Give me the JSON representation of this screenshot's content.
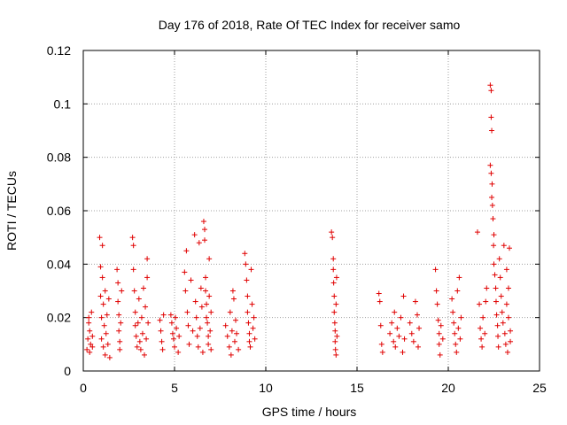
{
  "chart_data": {
    "type": "scatter",
    "title": "Day 176 of 2018, Rate Of TEC Index for receiver samo",
    "xlabel": "GPS time / hours",
    "ylabel": "ROTI / TECUs",
    "xlim": [
      0,
      25
    ],
    "ylim": [
      0,
      0.12
    ],
    "xticks": [
      0,
      5,
      10,
      15,
      20,
      25
    ],
    "yticks": [
      0,
      0.02,
      0.04,
      0.06,
      0.08,
      0.1,
      0.12
    ],
    "xtick_labels": [
      "0",
      "5",
      "10",
      "15",
      "20",
      "25"
    ],
    "ytick_labels": [
      "0",
      "0.02",
      "0.04",
      "0.06",
      "0.08",
      "0.1",
      "0.12"
    ],
    "grid": true,
    "marker": "+",
    "color": "#e00000",
    "series": [
      {
        "name": "ROTI",
        "points": [
          [
            0.2,
            0.008
          ],
          [
            0.25,
            0.012
          ],
          [
            0.3,
            0.018
          ],
          [
            0.3,
            0.02
          ],
          [
            0.35,
            0.015
          ],
          [
            0.35,
            0.007
          ],
          [
            0.4,
            0.01
          ],
          [
            0.45,
            0.022
          ],
          [
            0.5,
            0.013
          ],
          [
            0.5,
            0.009
          ],
          [
            0.9,
            0.05
          ],
          [
            0.95,
            0.039
          ],
          [
            0.95,
            0.028
          ],
          [
            1.0,
            0.02
          ],
          [
            1.0,
            0.012
          ],
          [
            1.05,
            0.047
          ],
          [
            1.05,
            0.035
          ],
          [
            1.1,
            0.025
          ],
          [
            1.1,
            0.009
          ],
          [
            1.15,
            0.017
          ],
          [
            1.2,
            0.006
          ],
          [
            1.2,
            0.03
          ],
          [
            1.25,
            0.014
          ],
          [
            1.3,
            0.021
          ],
          [
            1.35,
            0.01
          ],
          [
            1.4,
            0.027
          ],
          [
            1.45,
            0.005
          ],
          [
            1.85,
            0.038
          ],
          [
            1.9,
            0.033
          ],
          [
            1.9,
            0.026
          ],
          [
            1.95,
            0.021
          ],
          [
            1.95,
            0.015
          ],
          [
            2.0,
            0.011
          ],
          [
            2.0,
            0.008
          ],
          [
            2.05,
            0.018
          ],
          [
            2.1,
            0.03
          ],
          [
            2.7,
            0.05
          ],
          [
            2.75,
            0.047
          ],
          [
            2.75,
            0.038
          ],
          [
            2.8,
            0.03
          ],
          [
            2.85,
            0.022
          ],
          [
            2.85,
            0.017
          ],
          [
            2.9,
            0.013
          ],
          [
            2.95,
            0.009
          ],
          [
            3.0,
            0.018
          ],
          [
            3.05,
            0.027
          ],
          [
            3.1,
            0.011
          ],
          [
            3.15,
            0.008
          ],
          [
            3.2,
            0.02
          ],
          [
            3.25,
            0.014
          ],
          [
            3.3,
            0.031
          ],
          [
            3.35,
            0.006
          ],
          [
            3.4,
            0.024
          ],
          [
            3.45,
            0.012
          ],
          [
            3.5,
            0.042
          ],
          [
            3.5,
            0.035
          ],
          [
            3.55,
            0.018
          ],
          [
            4.2,
            0.019
          ],
          [
            4.25,
            0.015
          ],
          [
            4.3,
            0.011
          ],
          [
            4.35,
            0.008
          ],
          [
            4.4,
            0.021
          ],
          [
            4.8,
            0.021
          ],
          [
            4.85,
            0.018
          ],
          [
            4.9,
            0.014
          ],
          [
            4.95,
            0.012
          ],
          [
            5.0,
            0.009
          ],
          [
            5.05,
            0.02
          ],
          [
            5.1,
            0.016
          ],
          [
            5.2,
            0.007
          ],
          [
            5.25,
            0.013
          ],
          [
            5.55,
            0.037
          ],
          [
            5.6,
            0.03
          ],
          [
            5.65,
            0.045
          ],
          [
            5.7,
            0.022
          ],
          [
            5.75,
            0.017
          ],
          [
            5.8,
            0.01
          ],
          [
            5.9,
            0.034
          ],
          [
            6.0,
            0.015
          ],
          [
            6.1,
            0.051
          ],
          [
            6.15,
            0.026
          ],
          [
            6.2,
            0.02
          ],
          [
            6.25,
            0.013
          ],
          [
            6.3,
            0.009
          ],
          [
            6.35,
            0.048
          ],
          [
            6.4,
            0.016
          ],
          [
            6.45,
            0.031
          ],
          [
            6.5,
            0.024
          ],
          [
            6.55,
            0.007
          ],
          [
            6.6,
            0.056
          ],
          [
            6.65,
            0.053
          ],
          [
            6.65,
            0.049
          ],
          [
            6.7,
            0.035
          ],
          [
            6.7,
            0.03
          ],
          [
            6.75,
            0.025
          ],
          [
            6.75,
            0.02
          ],
          [
            6.8,
            0.018
          ],
          [
            6.85,
            0.013
          ],
          [
            6.85,
            0.01
          ],
          [
            6.9,
            0.042
          ],
          [
            6.9,
            0.028
          ],
          [
            6.95,
            0.015
          ],
          [
            7.0,
            0.022
          ],
          [
            7.0,
            0.008
          ],
          [
            7.8,
            0.017
          ],
          [
            7.9,
            0.013
          ],
          [
            8.0,
            0.009
          ],
          [
            8.05,
            0.022
          ],
          [
            8.1,
            0.006
          ],
          [
            8.15,
            0.015
          ],
          [
            8.2,
            0.03
          ],
          [
            8.25,
            0.027
          ],
          [
            8.3,
            0.011
          ],
          [
            8.35,
            0.019
          ],
          [
            8.4,
            0.014
          ],
          [
            8.5,
            0.008
          ],
          [
            8.85,
            0.044
          ],
          [
            8.9,
            0.04
          ],
          [
            8.95,
            0.034
          ],
          [
            9.0,
            0.028
          ],
          [
            9.0,
            0.022
          ],
          [
            9.05,
            0.018
          ],
          [
            9.1,
            0.014
          ],
          [
            9.1,
            0.011
          ],
          [
            9.15,
            0.009
          ],
          [
            9.2,
            0.038
          ],
          [
            9.25,
            0.025
          ],
          [
            9.3,
            0.016
          ],
          [
            9.35,
            0.02
          ],
          [
            9.4,
            0.012
          ],
          [
            13.6,
            0.052
          ],
          [
            13.65,
            0.05
          ],
          [
            13.7,
            0.042
          ],
          [
            13.7,
            0.038
          ],
          [
            13.72,
            0.033
          ],
          [
            13.75,
            0.028
          ],
          [
            13.75,
            0.022
          ],
          [
            13.78,
            0.018
          ],
          [
            13.8,
            0.015
          ],
          [
            13.8,
            0.011
          ],
          [
            13.82,
            0.008
          ],
          [
            13.85,
            0.006
          ],
          [
            13.85,
            0.025
          ],
          [
            13.88,
            0.035
          ],
          [
            13.9,
            0.013
          ],
          [
            16.2,
            0.029
          ],
          [
            16.25,
            0.026
          ],
          [
            16.3,
            0.017
          ],
          [
            16.35,
            0.01
          ],
          [
            16.4,
            0.007
          ],
          [
            16.8,
            0.014
          ],
          [
            16.9,
            0.018
          ],
          [
            17.0,
            0.011
          ],
          [
            17.05,
            0.022
          ],
          [
            17.1,
            0.009
          ],
          [
            17.2,
            0.016
          ],
          [
            17.3,
            0.013
          ],
          [
            17.4,
            0.02
          ],
          [
            17.5,
            0.007
          ],
          [
            17.55,
            0.028
          ],
          [
            17.6,
            0.012
          ],
          [
            17.9,
            0.018
          ],
          [
            18.0,
            0.014
          ],
          [
            18.1,
            0.011
          ],
          [
            18.2,
            0.026
          ],
          [
            18.3,
            0.021
          ],
          [
            18.35,
            0.009
          ],
          [
            18.4,
            0.016
          ],
          [
            19.3,
            0.038
          ],
          [
            19.35,
            0.03
          ],
          [
            19.4,
            0.025
          ],
          [
            19.45,
            0.019
          ],
          [
            19.5,
            0.014
          ],
          [
            19.5,
            0.01
          ],
          [
            19.55,
            0.006
          ],
          [
            19.6,
            0.017
          ],
          [
            19.7,
            0.012
          ],
          [
            20.2,
            0.027
          ],
          [
            20.25,
            0.022
          ],
          [
            20.3,
            0.018
          ],
          [
            20.35,
            0.014
          ],
          [
            20.4,
            0.01
          ],
          [
            20.45,
            0.007
          ],
          [
            20.5,
            0.03
          ],
          [
            20.55,
            0.016
          ],
          [
            20.6,
            0.035
          ],
          [
            20.65,
            0.012
          ],
          [
            20.7,
            0.02
          ],
          [
            21.6,
            0.052
          ],
          [
            21.7,
            0.025
          ],
          [
            21.75,
            0.016
          ],
          [
            21.8,
            0.012
          ],
          [
            21.85,
            0.009
          ],
          [
            21.9,
            0.02
          ],
          [
            22.0,
            0.014
          ],
          [
            22.05,
            0.026
          ],
          [
            22.1,
            0.031
          ],
          [
            22.3,
            0.107
          ],
          [
            22.35,
            0.105
          ],
          [
            22.35,
            0.095
          ],
          [
            22.38,
            0.09
          ],
          [
            22.3,
            0.077
          ],
          [
            22.35,
            0.074
          ],
          [
            22.4,
            0.07
          ],
          [
            22.38,
            0.065
          ],
          [
            22.42,
            0.062
          ],
          [
            22.45,
            0.057
          ],
          [
            22.5,
            0.051
          ],
          [
            22.48,
            0.047
          ],
          [
            22.5,
            0.04
          ],
          [
            22.55,
            0.036
          ],
          [
            22.6,
            0.031
          ],
          [
            22.62,
            0.026
          ],
          [
            22.65,
            0.021
          ],
          [
            22.7,
            0.017
          ],
          [
            22.72,
            0.013
          ],
          [
            22.75,
            0.009
          ],
          [
            22.8,
            0.042
          ],
          [
            22.85,
            0.035
          ],
          [
            22.9,
            0.028
          ],
          [
            22.95,
            0.022
          ],
          [
            23.0,
            0.018
          ],
          [
            23.05,
            0.047
          ],
          [
            23.1,
            0.014
          ],
          [
            23.15,
            0.01
          ],
          [
            23.2,
            0.038
          ],
          [
            23.2,
            0.025
          ],
          [
            23.25,
            0.007
          ],
          [
            23.3,
            0.031
          ],
          [
            23.3,
            0.02
          ],
          [
            23.35,
            0.046
          ],
          [
            23.4,
            0.015
          ],
          [
            23.4,
            0.011
          ]
        ]
      }
    ]
  }
}
